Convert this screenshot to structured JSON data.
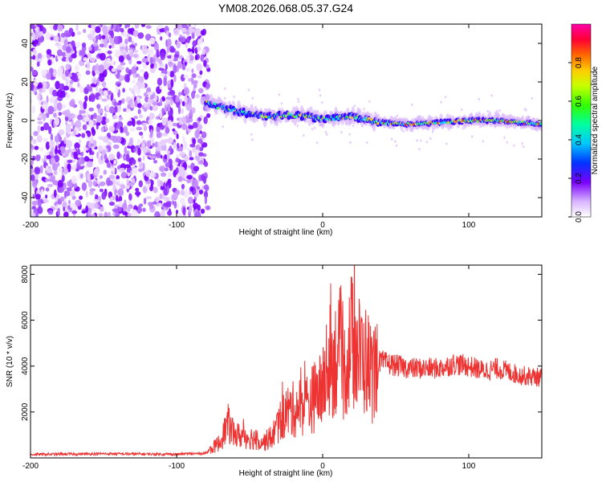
{
  "chart_data": [
    {
      "type": "heatmap",
      "title": "YM08.2026.068.05.37.G24",
      "xlabel": "Height of straight line (km)",
      "ylabel": "Frequency (Hz)",
      "xlim": [
        -200,
        150
      ],
      "ylim": [
        -50,
        50
      ],
      "xticks": [
        -200,
        -100,
        0,
        100
      ],
      "yticks": [
        -40,
        -20,
        0,
        20,
        40
      ],
      "noise_region_x": [
        -200,
        -78
      ],
      "ridge": {
        "x": [
          -80,
          -60,
          -40,
          -20,
          0,
          20,
          40,
          60,
          80,
          100,
          120,
          150
        ],
        "frequency": [
          9,
          5,
          2,
          3,
          1,
          2,
          -1,
          -2,
          -1,
          0,
          0,
          -2
        ]
      },
      "colorbar": {
        "label": "Normalized spectral amplitude",
        "min": 0.0,
        "max": 1.0,
        "ticks": [
          "0.0",
          "0.2",
          "0.4",
          "0.6",
          "0.8"
        ],
        "tick_values": [
          0.0,
          0.2,
          0.4,
          0.6,
          0.8
        ]
      }
    },
    {
      "type": "line",
      "xlabel": "Height of straight line (km)",
      "ylabel": "SNR (10 * v/v)",
      "xlim": [
        -200,
        150
      ],
      "ylim": [
        0,
        8400
      ],
      "xticks": [
        -200,
        -100,
        0,
        100
      ],
      "yticks": [
        2000,
        4000,
        6000,
        8000
      ],
      "color": "#ee3333",
      "series": [
        {
          "name": "SNR",
          "x": [
            -200,
            -150,
            -100,
            -80,
            -70,
            -65,
            -60,
            -50,
            -40,
            -35,
            -30,
            -25,
            -20,
            -10,
            0,
            5,
            10,
            15,
            20,
            25,
            30,
            35,
            38,
            45,
            60,
            80,
            90,
            100,
            110,
            120,
            135,
            150
          ],
          "values": [
            150,
            180,
            160,
            200,
            700,
            1500,
            1000,
            900,
            700,
            900,
            1500,
            2000,
            2100,
            2400,
            3000,
            4000,
            4500,
            3800,
            5200,
            4500,
            4200,
            3600,
            4200,
            4100,
            3900,
            3900,
            4100,
            4000,
            3800,
            3900,
            3600,
            3500
          ]
        }
      ]
    }
  ]
}
